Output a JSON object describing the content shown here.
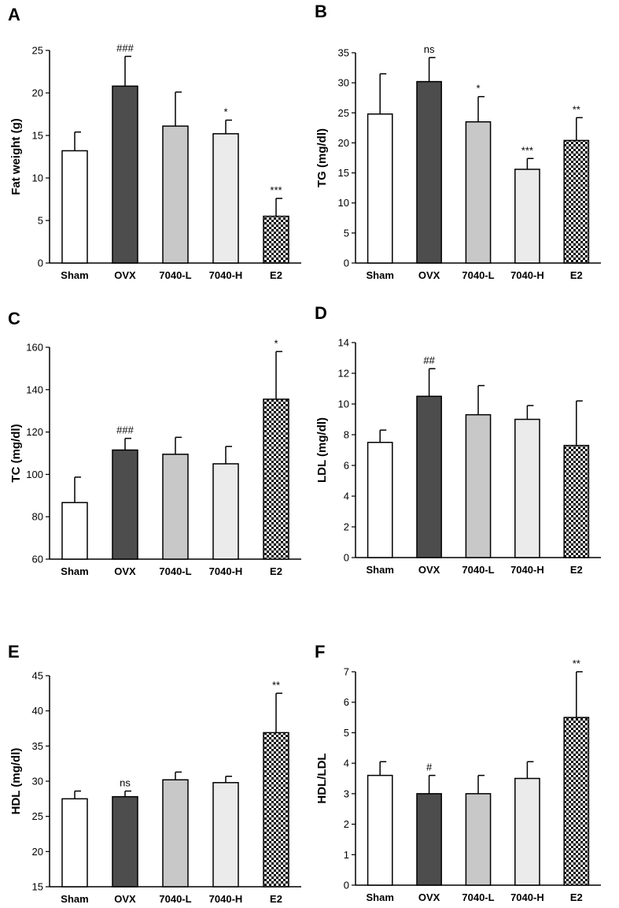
{
  "figure": {
    "patterns": {
      "fill_white": "#ffffff",
      "fill_dark": "#4d4d4d",
      "fill_mid": "#c8c8c8",
      "fill_light": "#ebebeb",
      "checker": "#000000"
    }
  },
  "chart_data": [
    {
      "id": "A",
      "type": "bar",
      "panel_letter": "A",
      "ylabel": "Fat weight (g)",
      "categories": [
        "Sham",
        "OVX",
        "7040-L",
        "7040-H",
        "E2"
      ],
      "values": [
        13.2,
        20.8,
        16.1,
        15.2,
        5.5
      ],
      "errors": [
        2.2,
        3.5,
        4.0,
        1.6,
        2.1
      ],
      "annotations": [
        "",
        "###",
        "",
        "*",
        "***"
      ],
      "ylim": [
        0,
        25
      ],
      "yticks": [
        0,
        5,
        10,
        15,
        20,
        25
      ]
    },
    {
      "id": "B",
      "type": "bar",
      "panel_letter": "B",
      "ylabel": "TG (mg/dl)",
      "categories": [
        "Sham",
        "OVX",
        "7040-L",
        "7040-H",
        "E2"
      ],
      "values": [
        24.8,
        30.2,
        23.5,
        15.6,
        20.4
      ],
      "errors": [
        6.7,
        4.0,
        4.2,
        1.8,
        3.8
      ],
      "annotations": [
        "",
        "ns",
        "*",
        "***",
        "**"
      ],
      "ylim": [
        0,
        35
      ],
      "yticks": [
        0,
        5,
        10,
        15,
        20,
        25,
        30,
        35
      ]
    },
    {
      "id": "C",
      "type": "bar",
      "panel_letter": "C",
      "ylabel": "TC (mg/dl)",
      "categories": [
        "Sham",
        "OVX",
        "7040-L",
        "7040-H",
        "E2"
      ],
      "values": [
        86.7,
        111.5,
        109.5,
        105.0,
        135.5
      ],
      "errors": [
        12.0,
        5.5,
        8.0,
        8.2,
        22.5
      ],
      "annotations": [
        "",
        "###",
        "",
        "",
        "*"
      ],
      "ylim": [
        60,
        160
      ],
      "yticks": [
        60,
        80,
        100,
        120,
        140,
        160
      ]
    },
    {
      "id": "D",
      "type": "bar",
      "panel_letter": "D",
      "ylabel": "LDL (mg/dl)",
      "categories": [
        "Sham",
        "OVX",
        "7040-L",
        "7040-H",
        "E2"
      ],
      "values": [
        7.5,
        10.5,
        9.3,
        9.0,
        7.3
      ],
      "errors": [
        0.8,
        1.8,
        1.9,
        0.9,
        2.9
      ],
      "annotations": [
        "",
        "##",
        "",
        "",
        ""
      ],
      "ylim": [
        0,
        14
      ],
      "yticks": [
        0,
        2,
        4,
        6,
        8,
        10,
        12,
        14
      ]
    },
    {
      "id": "E",
      "type": "bar",
      "panel_letter": "E",
      "ylabel": "HDL (mg/dl)",
      "categories": [
        "Sham",
        "OVX",
        "7040-L",
        "7040-H",
        "E2"
      ],
      "values": [
        27.5,
        27.8,
        30.2,
        29.8,
        36.9
      ],
      "errors": [
        1.1,
        0.8,
        1.1,
        0.9,
        5.6
      ],
      "annotations": [
        "",
        "ns",
        "",
        "",
        "**"
      ],
      "ylim": [
        15,
        45
      ],
      "yticks": [
        15,
        20,
        25,
        30,
        35,
        40,
        45
      ]
    },
    {
      "id": "F",
      "type": "bar",
      "panel_letter": "F",
      "ylabel": "HDL/LDL",
      "categories": [
        "Sham",
        "OVX",
        "7040-L",
        "7040-H",
        "E2"
      ],
      "values": [
        3.6,
        3.0,
        3.0,
        3.5,
        5.5
      ],
      "errors": [
        0.45,
        0.6,
        0.6,
        0.55,
        1.5
      ],
      "annotations": [
        "",
        "#",
        "",
        "",
        "**"
      ],
      "ylim": [
        0,
        7
      ],
      "yticks": [
        0,
        1,
        2,
        3,
        4,
        5,
        6,
        7
      ]
    }
  ]
}
